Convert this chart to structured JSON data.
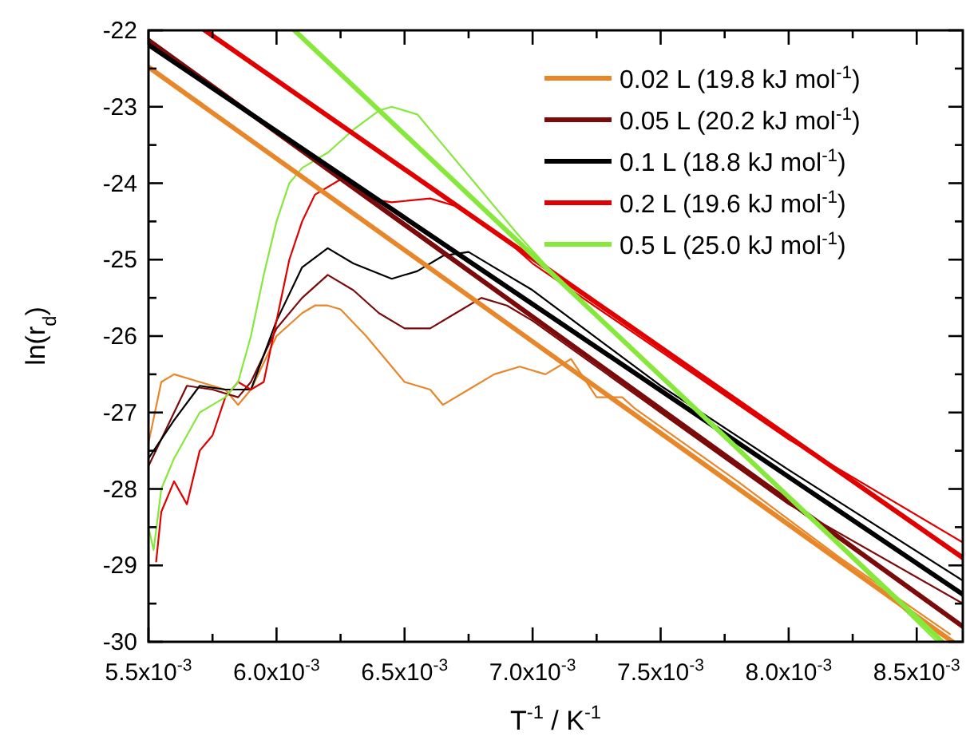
{
  "chart_data": {
    "type": "line",
    "xlabel": "T$^{-1}$ / K$^{-1}$",
    "ylabel": "ln(r$_{d}$)",
    "xlim": [
      0.0055,
      0.00868
    ],
    "ylim": [
      -30,
      -22
    ],
    "xticks": [
      {
        "value": 0.0055,
        "label": "5.5x10$^{-3}$"
      },
      {
        "value": 0.00575,
        "label": null
      },
      {
        "value": 0.006,
        "label": "6.0x10$^{-3}$"
      },
      {
        "value": 0.00625,
        "label": null
      },
      {
        "value": 0.0065,
        "label": "6.5x10$^{-3}$"
      },
      {
        "value": 0.00675,
        "label": null
      },
      {
        "value": 0.007,
        "label": "7.0x10$^{-3}$"
      },
      {
        "value": 0.00725,
        "label": null
      },
      {
        "value": 0.0075,
        "label": "7.5x10$^{-3}$"
      },
      {
        "value": 0.00775,
        "label": null
      },
      {
        "value": 0.008,
        "label": "8.0x10$^{-3}$"
      },
      {
        "value": 0.00825,
        "label": null
      },
      {
        "value": 0.0085,
        "label": "8.5x10$^{-3}$"
      }
    ],
    "yticks": [
      -22,
      {
        "value": -22.5,
        "label": null
      },
      -23,
      {
        "value": -23.5,
        "label": null
      },
      -24,
      {
        "value": -24.5,
        "label": null
      },
      -25,
      {
        "value": -25.5,
        "label": null
      },
      -26,
      {
        "value": -26.5,
        "label": null
      },
      -27,
      {
        "value": -27.5,
        "label": null
      },
      -28,
      {
        "value": -28.5,
        "label": null
      },
      -29,
      {
        "value": -29.5,
        "label": null
      },
      -30
    ],
    "grid": false,
    "legend": "top right",
    "marker": "none",
    "line_style": "solid",
    "series": [
      {
        "color": "#e8862a",
        "x": [
          0.0055,
          0.00555,
          0.0056,
          0.0057,
          0.0058,
          0.00585,
          0.0059,
          0.006,
          0.0061,
          0.00615,
          0.0062,
          0.00625,
          0.00635,
          0.00645,
          0.0065,
          0.0066,
          0.00665,
          0.00675,
          0.00685,
          0.00695,
          0.00705,
          0.00715,
          0.00725,
          0.00735,
          0.0074,
          0.0078,
          0.0082,
          0.00863
        ],
        "values": [
          -27.4,
          -26.6,
          -26.5,
          -26.6,
          -26.7,
          -26.9,
          -26.7,
          -26.0,
          -25.7,
          -25.6,
          -25.6,
          -25.65,
          -26.0,
          -26.4,
          -26.6,
          -26.7,
          -26.9,
          -26.7,
          -26.5,
          -26.4,
          -26.5,
          -26.3,
          -26.8,
          -26.8,
          -26.95,
          -27.9,
          -28.9,
          -29.9
        ]
      },
      {
        "color": "#7b0a0a",
        "x": [
          0.0055,
          0.0056,
          0.00565,
          0.00575,
          0.00585,
          0.0059,
          0.006,
          0.0061,
          0.0062,
          0.0063,
          0.0064,
          0.0065,
          0.0066,
          0.0067,
          0.0068,
          0.0069,
          0.007,
          0.0075,
          0.008,
          0.00868
        ],
        "values": [
          -27.7,
          -27.0,
          -26.65,
          -26.7,
          -26.8,
          -26.6,
          -25.9,
          -25.5,
          -25.2,
          -25.4,
          -25.7,
          -25.9,
          -25.9,
          -25.7,
          -25.5,
          -25.6,
          -25.8,
          -27.0,
          -28.2,
          -29.5
        ]
      },
      {
        "color": "#000000",
        "x": [
          0.0055,
          0.0056,
          0.0057,
          0.0058,
          0.0059,
          0.006,
          0.0061,
          0.0062,
          0.0063,
          0.00645,
          0.00655,
          0.00665,
          0.00675,
          0.00685,
          0.007,
          0.0075,
          0.008,
          0.00868
        ],
        "values": [
          -27.6,
          -27.1,
          -26.65,
          -26.7,
          -26.7,
          -25.8,
          -25.1,
          -24.85,
          -25.05,
          -25.25,
          -25.15,
          -24.95,
          -24.9,
          -25.1,
          -25.4,
          -26.65,
          -27.75,
          -29.2
        ]
      },
      {
        "color": "#e00000",
        "x": [
          0.00553,
          0.00555,
          0.0056,
          0.00565,
          0.0057,
          0.00575,
          0.0058,
          0.00585,
          0.0059,
          0.00595,
          0.006,
          0.00605,
          0.0061,
          0.00615,
          0.00625,
          0.00635,
          0.00645,
          0.0066,
          0.0067,
          0.0068,
          0.0069,
          0.007,
          0.0075,
          0.008,
          0.00868
        ],
        "values": [
          -28.95,
          -28.3,
          -27.9,
          -28.2,
          -27.5,
          -27.3,
          -26.8,
          -26.6,
          -26.7,
          -26.6,
          -25.8,
          -25.0,
          -24.5,
          -24.15,
          -23.95,
          -24.2,
          -24.25,
          -24.2,
          -24.3,
          -24.5,
          -24.75,
          -25.05,
          -26.2,
          -27.35,
          -28.7
        ]
      },
      {
        "color": "#86e83a",
        "x": [
          0.0055,
          0.00552,
          0.00555,
          0.0056,
          0.00565,
          0.0057,
          0.00575,
          0.0058,
          0.00585,
          0.0059,
          0.00595,
          0.006,
          0.00605,
          0.0061,
          0.0062,
          0.0063,
          0.0064,
          0.00645,
          0.00655,
          0.00665,
          0.0068,
          0.00695,
          0.0071,
          0.0075,
          0.008,
          0.00858
        ],
        "values": [
          -28.5,
          -28.8,
          -28.0,
          -27.6,
          -27.3,
          -27.0,
          -26.9,
          -26.8,
          -26.6,
          -26.0,
          -25.2,
          -24.5,
          -24.0,
          -23.8,
          -23.6,
          -23.3,
          -23.05,
          -23.0,
          -23.1,
          -23.5,
          -24.1,
          -24.7,
          -25.25,
          -26.5,
          -28.1,
          -30.0
        ]
      },
      {
        "name": "0.02 L (19.8 kJ mol$^{-1}$)",
        "color": "#e8862a",
        "x": [
          0.0055,
          0.00864
        ],
        "values": [
          -22.48,
          -30.0
        ]
      },
      {
        "name": "0.05 L (20.2 kJ mol$^{-1}$)",
        "color": "#7b0a0a",
        "x": [
          0.0055,
          0.00868
        ],
        "values": [
          -22.13,
          -29.8
        ]
      },
      {
        "name": "0.1 L (18.8 kJ mol$^{-1}$)",
        "color": "#000000",
        "x": [
          0.0055,
          0.00868
        ],
        "values": [
          -22.19,
          -29.38
        ]
      },
      {
        "name": "0.2 L (19.6 kJ mol$^{-1}$)",
        "color": "#e00000",
        "x": [
          0.00572,
          0.00868
        ],
        "values": [
          -22.0,
          -28.9
        ]
      },
      {
        "name": "0.5 L (25.0 kJ mol$^{-1}$)",
        "color": "#86e83a",
        "x": [
          0.00607,
          0.0086
        ],
        "values": [
          -22.0,
          -30.0
        ]
      }
    ]
  }
}
